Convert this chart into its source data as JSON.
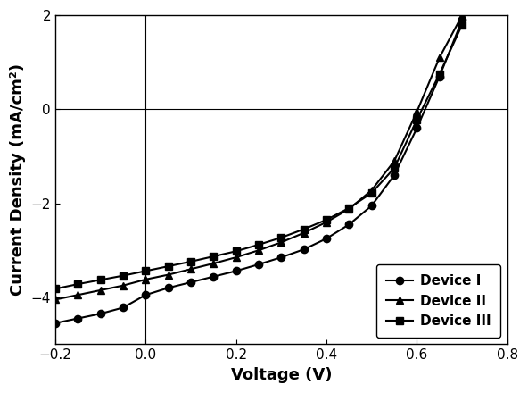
{
  "title": "",
  "xlabel": "Voltage (V)",
  "ylabel": "Current Density (mA/cm²)",
  "xlim": [
    -0.2,
    0.8
  ],
  "ylim": [
    -5.0,
    2.0
  ],
  "xticks": [
    -0.2,
    0.0,
    0.2,
    0.4,
    0.6,
    0.8
  ],
  "yticks": [
    -4.0,
    -2.0,
    0.0,
    2.0
  ],
  "background_color": "#ffffff",
  "devices": [
    {
      "label": "Device I",
      "marker": "o",
      "color": "#000000",
      "voltage": [
        -0.2,
        -0.15,
        -0.1,
        -0.05,
        0.0,
        0.05,
        0.1,
        0.15,
        0.2,
        0.25,
        0.3,
        0.35,
        0.4,
        0.45,
        0.5,
        0.55,
        0.6,
        0.65,
        0.7
      ],
      "current": [
        -4.55,
        -4.45,
        -4.35,
        -4.22,
        -3.95,
        -3.8,
        -3.68,
        -3.56,
        -3.44,
        -3.3,
        -3.15,
        -2.98,
        -2.75,
        -2.45,
        -2.05,
        -1.4,
        -0.4,
        0.7,
        1.9
      ]
    },
    {
      "label": "Device II",
      "marker": "^",
      "color": "#000000",
      "voltage": [
        -0.2,
        -0.15,
        -0.1,
        -0.05,
        0.0,
        0.05,
        0.1,
        0.15,
        0.2,
        0.25,
        0.3,
        0.35,
        0.4,
        0.45,
        0.5,
        0.55,
        0.6,
        0.65,
        0.7
      ],
      "current": [
        -4.05,
        -3.95,
        -3.85,
        -3.75,
        -3.62,
        -3.52,
        -3.4,
        -3.28,
        -3.15,
        -3.0,
        -2.83,
        -2.63,
        -2.4,
        -2.12,
        -1.72,
        -1.1,
        -0.05,
        1.1,
        2.0
      ]
    },
    {
      "label": "Device III",
      "marker": "s",
      "color": "#000000",
      "voltage": [
        -0.2,
        -0.15,
        -0.1,
        -0.05,
        0.0,
        0.05,
        0.1,
        0.15,
        0.2,
        0.25,
        0.3,
        0.35,
        0.4,
        0.45,
        0.5,
        0.55,
        0.6,
        0.65,
        0.7
      ],
      "current": [
        -3.82,
        -3.72,
        -3.63,
        -3.54,
        -3.44,
        -3.34,
        -3.24,
        -3.13,
        -3.02,
        -2.88,
        -2.73,
        -2.55,
        -2.35,
        -2.1,
        -1.78,
        -1.25,
        -0.22,
        0.75,
        1.8
      ]
    }
  ],
  "legend_loc": "lower right",
  "marker_size": 6,
  "linewidth": 1.5,
  "font_size": 11,
  "label_font_size": 13,
  "tick_font_size": 11
}
